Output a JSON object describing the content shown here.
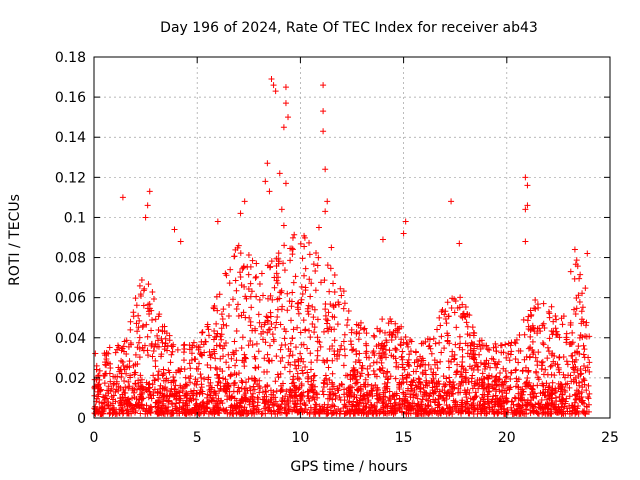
{
  "chart_data": {
    "type": "scatter",
    "title": "Day 196 of 2024, Rate Of TEC Index for receiver ab43",
    "xlabel": "GPS time / hours",
    "ylabel": "ROTI / TECUs",
    "xlim": [
      0,
      25
    ],
    "ylim": [
      0,
      0.18
    ],
    "xticks": [
      "0",
      "5",
      "10",
      "15",
      "20",
      "25"
    ],
    "yticks": [
      "0",
      "0.02",
      "0.04",
      "0.06",
      "0.08",
      "0.1",
      "0.12",
      "0.14",
      "0.16",
      "0.18"
    ],
    "grid": true,
    "marker": "+",
    "color": "#ff0000",
    "outliers": [
      {
        "x": 1.4,
        "y": 0.11
      },
      {
        "x": 2.5,
        "y": 0.1
      },
      {
        "x": 2.7,
        "y": 0.113
      },
      {
        "x": 2.6,
        "y": 0.106
      },
      {
        "x": 3.9,
        "y": 0.094
      },
      {
        "x": 4.2,
        "y": 0.088
      },
      {
        "x": 6.0,
        "y": 0.098
      },
      {
        "x": 7.1,
        "y": 0.102
      },
      {
        "x": 7.3,
        "y": 0.108
      },
      {
        "x": 8.3,
        "y": 0.118
      },
      {
        "x": 8.4,
        "y": 0.127
      },
      {
        "x": 8.5,
        "y": 0.113
      },
      {
        "x": 8.6,
        "y": 0.169
      },
      {
        "x": 8.7,
        "y": 0.166
      },
      {
        "x": 8.8,
        "y": 0.163
      },
      {
        "x": 9.0,
        "y": 0.122
      },
      {
        "x": 9.1,
        "y": 0.104
      },
      {
        "x": 9.2,
        "y": 0.145
      },
      {
        "x": 9.3,
        "y": 0.165
      },
      {
        "x": 9.3,
        "y": 0.157
      },
      {
        "x": 9.4,
        "y": 0.15
      },
      {
        "x": 9.3,
        "y": 0.117
      },
      {
        "x": 9.2,
        "y": 0.096
      },
      {
        "x": 10.9,
        "y": 0.095
      },
      {
        "x": 11.1,
        "y": 0.166
      },
      {
        "x": 11.1,
        "y": 0.153
      },
      {
        "x": 11.1,
        "y": 0.143
      },
      {
        "x": 11.2,
        "y": 0.124
      },
      {
        "x": 11.3,
        "y": 0.108
      },
      {
        "x": 11.2,
        "y": 0.103
      },
      {
        "x": 11.5,
        "y": 0.085
      },
      {
        "x": 14.0,
        "y": 0.089
      },
      {
        "x": 15.1,
        "y": 0.098
      },
      {
        "x": 15.0,
        "y": 0.092
      },
      {
        "x": 17.3,
        "y": 0.108
      },
      {
        "x": 17.7,
        "y": 0.087
      },
      {
        "x": 20.9,
        "y": 0.12
      },
      {
        "x": 21.0,
        "y": 0.116
      },
      {
        "x": 21.0,
        "y": 0.106
      },
      {
        "x": 20.9,
        "y": 0.104
      },
      {
        "x": 20.9,
        "y": 0.088
      },
      {
        "x": 23.3,
        "y": 0.084
      },
      {
        "x": 23.9,
        "y": 0.082
      },
      {
        "x": 23.1,
        "y": 0.073
      }
    ]
  }
}
